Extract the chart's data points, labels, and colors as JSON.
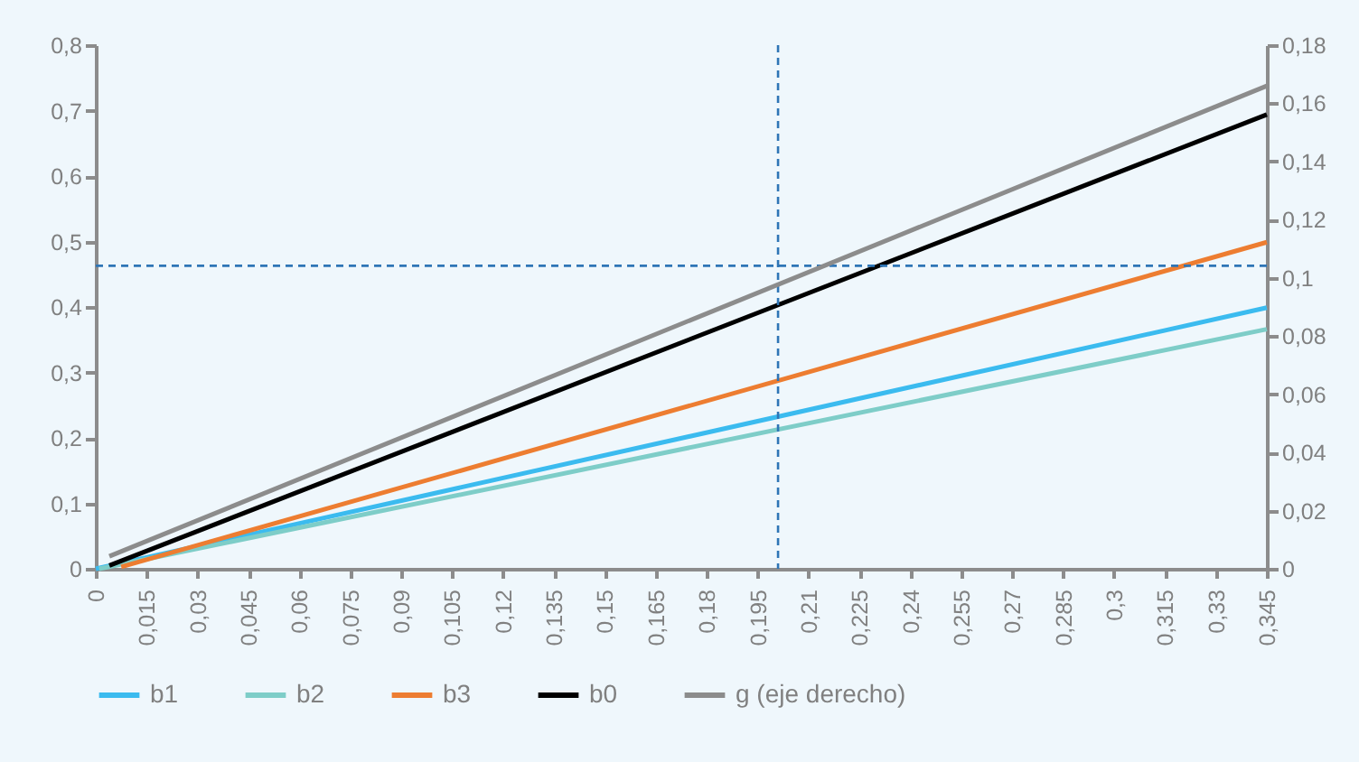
{
  "chart_data": {
    "type": "line",
    "xlim": [
      0,
      0.345
    ],
    "xticks": [
      {
        "value": 0,
        "label": "0"
      },
      {
        "value": 0.015,
        "label": "0,015"
      },
      {
        "value": 0.03,
        "label": "0,03"
      },
      {
        "value": 0.045,
        "label": "0,045"
      },
      {
        "value": 0.06,
        "label": "0,06"
      },
      {
        "value": 0.075,
        "label": "0,075"
      },
      {
        "value": 0.09,
        "label": "0,09"
      },
      {
        "value": 0.105,
        "label": "0,105"
      },
      {
        "value": 0.12,
        "label": "0,12"
      },
      {
        "value": 0.135,
        "label": "0,135"
      },
      {
        "value": 0.15,
        "label": "0,15"
      },
      {
        "value": 0.165,
        "label": "0,165"
      },
      {
        "value": 0.18,
        "label": "0,18"
      },
      {
        "value": 0.195,
        "label": "0,195"
      },
      {
        "value": 0.21,
        "label": "0,21"
      },
      {
        "value": 0.225,
        "label": "0,225"
      },
      {
        "value": 0.24,
        "label": "0,24"
      },
      {
        "value": 0.255,
        "label": "0,255"
      },
      {
        "value": 0.27,
        "label": "0,27"
      },
      {
        "value": 0.285,
        "label": "0,285"
      },
      {
        "value": 0.3,
        "label": "0,3"
      },
      {
        "value": 0.315,
        "label": "0,315"
      },
      {
        "value": 0.33,
        "label": "0,33"
      },
      {
        "value": 0.345,
        "label": "0,345"
      }
    ],
    "ylim": [
      0,
      0.8
    ],
    "yticks": [
      0,
      {
        "value": 0.1,
        "label": "0,1"
      },
      {
        "value": 0.2,
        "label": "0,2"
      },
      {
        "value": 0.3,
        "label": "0,3"
      },
      {
        "value": 0.4,
        "label": "0,4"
      },
      {
        "value": 0.5,
        "label": "0,5"
      },
      {
        "value": 0.6,
        "label": "0,6"
      },
      {
        "value": 0.7,
        "label": "0,7"
      },
      {
        "value": 0.8,
        "label": "0,8"
      }
    ],
    "y2lim": [
      0,
      0.18
    ],
    "y2ticks": [
      0,
      {
        "value": 0.02,
        "label": "0,02"
      },
      {
        "value": 0.04,
        "label": "0,04"
      },
      {
        "value": 0.06,
        "label": "0,06"
      },
      {
        "value": 0.08,
        "label": "0,08"
      },
      {
        "value": 0.1,
        "label": "0,1"
      },
      {
        "value": 0.12,
        "label": "0,12"
      },
      {
        "value": 0.14,
        "label": "0,14"
      },
      {
        "value": 0.16,
        "label": "0,16"
      },
      {
        "value": 0.18,
        "label": "0,18"
      }
    ],
    "series": [
      {
        "name": "b1",
        "color": "#3bbbef",
        "x": [
          0,
          0.345
        ],
        "values": [
          0,
          0.399
        ]
      },
      {
        "name": "b2",
        "color": "#7ecdc8",
        "x": [
          0.001,
          0.345
        ],
        "values": [
          0,
          0.366
        ]
      },
      {
        "name": "b3",
        "color": "#ed7d31",
        "x": [
          0.0075,
          0.345
        ],
        "values": [
          0.003,
          0.499
        ]
      },
      {
        "name": "b0",
        "color": "#000000",
        "x": [
          0.004,
          0.345
        ],
        "values": [
          0.005,
          0.694
        ]
      },
      {
        "name": "g (eje derecho)",
        "color": "#8c8c8c",
        "axis": "y2",
        "x": [
          0.004,
          0.345
        ],
        "values": [
          0.0043,
          0.166
        ]
      }
    ],
    "ref_lines": [
      {
        "axis": "x",
        "value": 0.201,
        "color": "#2e75b6",
        "line_style": "dashed"
      },
      {
        "axis": "y",
        "value": 0.463,
        "color": "#2e75b6",
        "line_style": "dashed"
      }
    ],
    "grid": false,
    "legend": "bottom"
  }
}
